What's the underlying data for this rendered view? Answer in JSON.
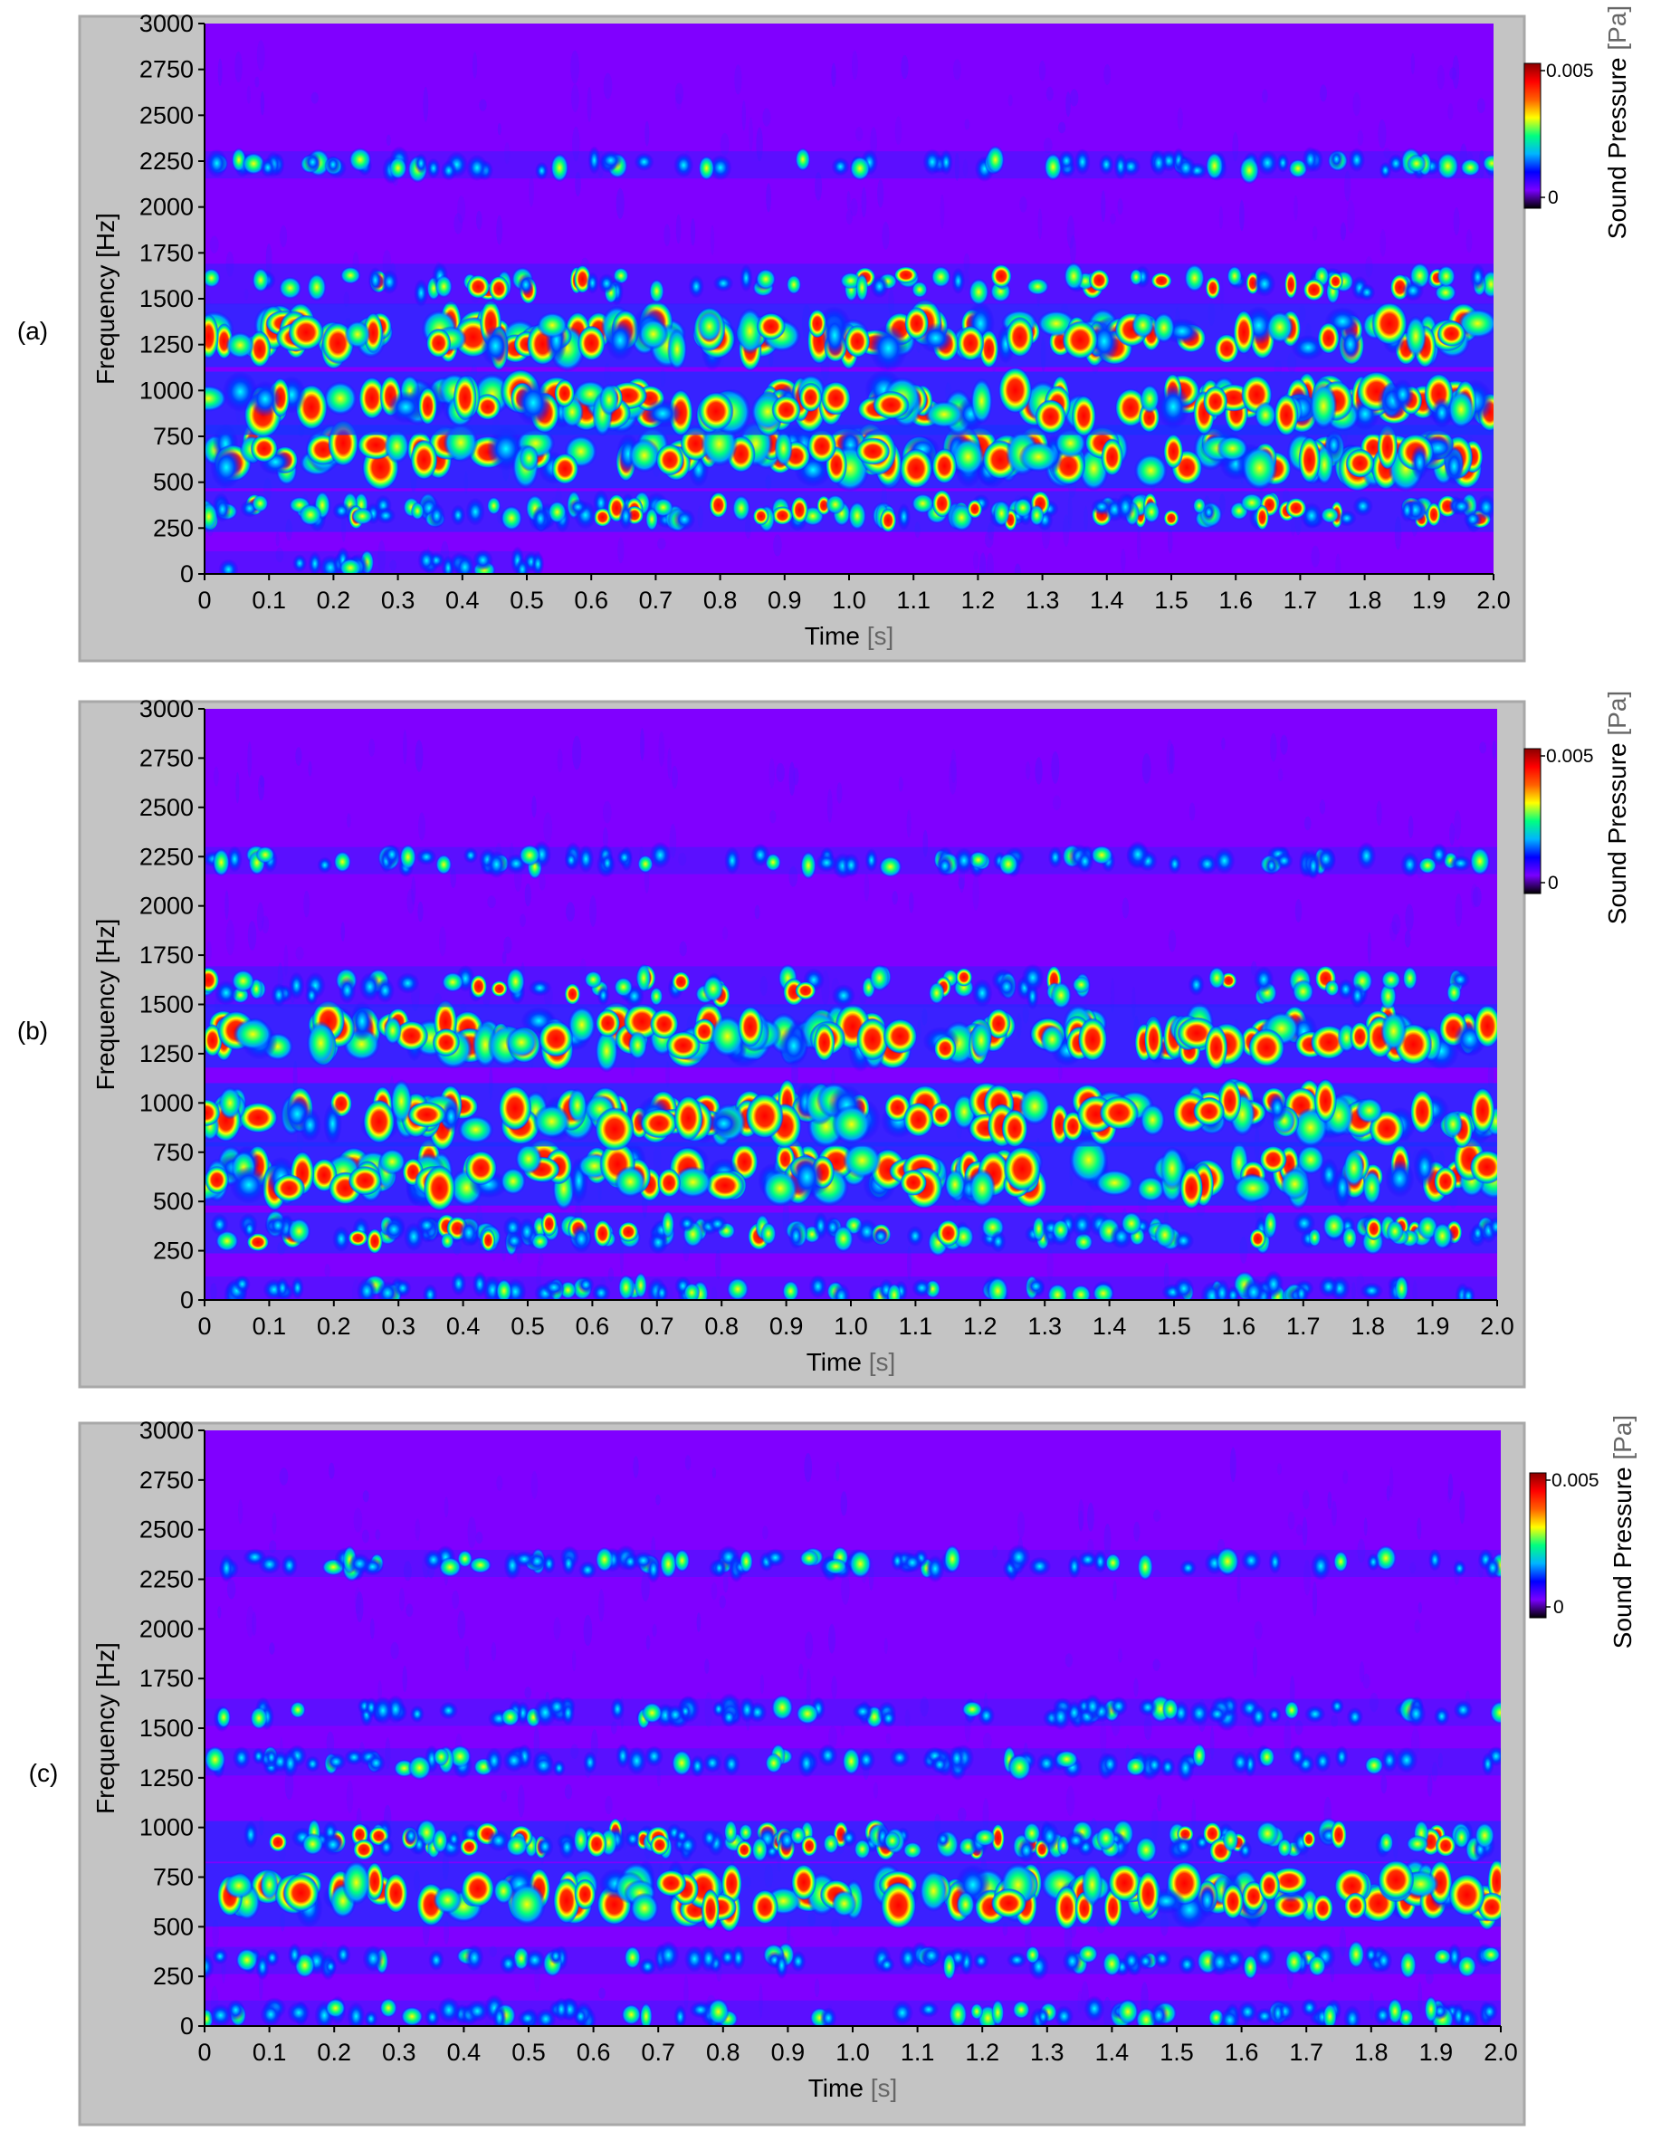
{
  "chart_data": [
    {
      "type": "heatmap",
      "panel_label": "(a)",
      "xlabel": "Time",
      "xlabel_unit": "[s]",
      "ylabel": "Frequency [Hz]",
      "x_ticks": [
        "0",
        "0.1",
        "0.2",
        "0.3",
        "0.4",
        "0.5",
        "0.6",
        "0.7",
        "0.8",
        "0.9",
        "1.0",
        "1.1",
        "1.2",
        "1.3",
        "1.4",
        "1.5",
        "1.6",
        "1.7",
        "1.8",
        "1.9",
        "2.0"
      ],
      "y_ticks": [
        "0",
        "250",
        "500",
        "750",
        "1000",
        "1250",
        "1500",
        "1750",
        "2000",
        "2250",
        "2500",
        "2750",
        "3000"
      ],
      "xlim": [
        0,
        2.0
      ],
      "ylim": [
        0,
        3000
      ],
      "colorbar": {
        "label": "Sound Pressure",
        "unit": "[Pa]",
        "max_label": "0.005",
        "min_label": "0",
        "range": [
          0,
          0.005
        ]
      },
      "bands": [
        {
          "frequency": 50,
          "intensity": 0.3,
          "coverage": [
            0,
            0.52
          ]
        },
        {
          "frequency": 340,
          "intensity": 0.55,
          "coverage": [
            0,
            2.0
          ]
        },
        {
          "frequency": 640,
          "intensity": 0.95,
          "coverage": [
            0,
            2.0
          ]
        },
        {
          "frequency": 930,
          "intensity": 0.9,
          "coverage": [
            0,
            2.0
          ]
        },
        {
          "frequency": 1300,
          "intensity": 0.85,
          "coverage": [
            0,
            2.0
          ]
        },
        {
          "frequency": 1580,
          "intensity": 0.45,
          "coverage": [
            0,
            2.0
          ]
        },
        {
          "frequency": 2230,
          "intensity": 0.25,
          "coverage": [
            0,
            2.0
          ]
        }
      ]
    },
    {
      "type": "heatmap",
      "panel_label": "(b)",
      "xlabel": "Time",
      "xlabel_unit": "[s]",
      "ylabel": "Frequency [Hz]",
      "x_ticks": [
        "0",
        "0.1",
        "0.2",
        "0.3",
        "0.4",
        "0.5",
        "0.6",
        "0.7",
        "0.8",
        "0.9",
        "1.0",
        "1.1",
        "1.2",
        "1.3",
        "1.4",
        "1.5",
        "1.6",
        "1.7",
        "1.8",
        "1.9",
        "2.0"
      ],
      "y_ticks": [
        "0",
        "250",
        "500",
        "750",
        "1000",
        "1250",
        "1500",
        "1750",
        "2000",
        "2250",
        "2500",
        "2750",
        "3000"
      ],
      "xlim": [
        0,
        2.0
      ],
      "ylim": [
        0,
        3000
      ],
      "colorbar": {
        "label": "Sound Pressure",
        "unit": "[Pa]",
        "max_label": "0.005",
        "min_label": "0",
        "range": [
          0,
          0.005
        ]
      },
      "bands": [
        {
          "frequency": 50,
          "intensity": 0.3,
          "coverage": [
            0,
            2.0
          ]
        },
        {
          "frequency": 340,
          "intensity": 0.6,
          "coverage": [
            0,
            2.0
          ]
        },
        {
          "frequency": 640,
          "intensity": 0.95,
          "coverage": [
            0,
            2.0
          ]
        },
        {
          "frequency": 940,
          "intensity": 0.85,
          "coverage": [
            0,
            2.0
          ]
        },
        {
          "frequency": 1340,
          "intensity": 0.85,
          "coverage": [
            0,
            2.0
          ]
        },
        {
          "frequency": 1590,
          "intensity": 0.45,
          "coverage": [
            0,
            2.0
          ]
        },
        {
          "frequency": 2230,
          "intensity": 0.3,
          "coverage": [
            0,
            2.0
          ]
        }
      ]
    },
    {
      "type": "heatmap",
      "panel_label": "(c)",
      "xlabel": "Time",
      "xlabel_unit": "[s]",
      "ylabel": "Frequency [Hz]",
      "x_ticks": [
        "0",
        "0.1",
        "0.2",
        "0.3",
        "0.4",
        "0.5",
        "0.6",
        "0.7",
        "0.8",
        "0.9",
        "1.0",
        "1.1",
        "1.2",
        "1.3",
        "1.4",
        "1.5",
        "1.6",
        "1.7",
        "1.8",
        "1.9",
        "2.0"
      ],
      "y_ticks": [
        "0",
        "250",
        "500",
        "750",
        "1000",
        "1250",
        "1500",
        "1750",
        "2000",
        "2250",
        "2500",
        "2750",
        "3000"
      ],
      "xlim": [
        0,
        2.0
      ],
      "ylim": [
        0,
        3000
      ],
      "colorbar": {
        "label": "Sound Pressure",
        "unit": "[Pa]",
        "max_label": "0.005",
        "min_label": "0",
        "range": [
          0,
          0.005
        ]
      },
      "bands": [
        {
          "frequency": 60,
          "intensity": 0.3,
          "coverage": [
            0,
            2.0
          ]
        },
        {
          "frequency": 330,
          "intensity": 0.3,
          "coverage": [
            0,
            2.0
          ]
        },
        {
          "frequency": 660,
          "intensity": 0.8,
          "coverage": [
            0,
            2.0
          ]
        },
        {
          "frequency": 930,
          "intensity": 0.7,
          "coverage": [
            0,
            2.0
          ]
        },
        {
          "frequency": 1330,
          "intensity": 0.35,
          "coverage": [
            0,
            2.0
          ]
        },
        {
          "frequency": 1580,
          "intensity": 0.2,
          "coverage": [
            0,
            2.0
          ]
        },
        {
          "frequency": 2330,
          "intensity": 0.15,
          "coverage": [
            0,
            2.0
          ]
        }
      ]
    }
  ],
  "colors": {
    "background": "#8000ff",
    "frame": "#c4c4c4",
    "frame_shadow": "#a8a8a8",
    "colorscale": [
      "#000000",
      "#7a00ff",
      "#0000ff",
      "#00b4ff",
      "#00ff80",
      "#ffff00",
      "#ff6000",
      "#ff0000",
      "#8b0000"
    ]
  }
}
